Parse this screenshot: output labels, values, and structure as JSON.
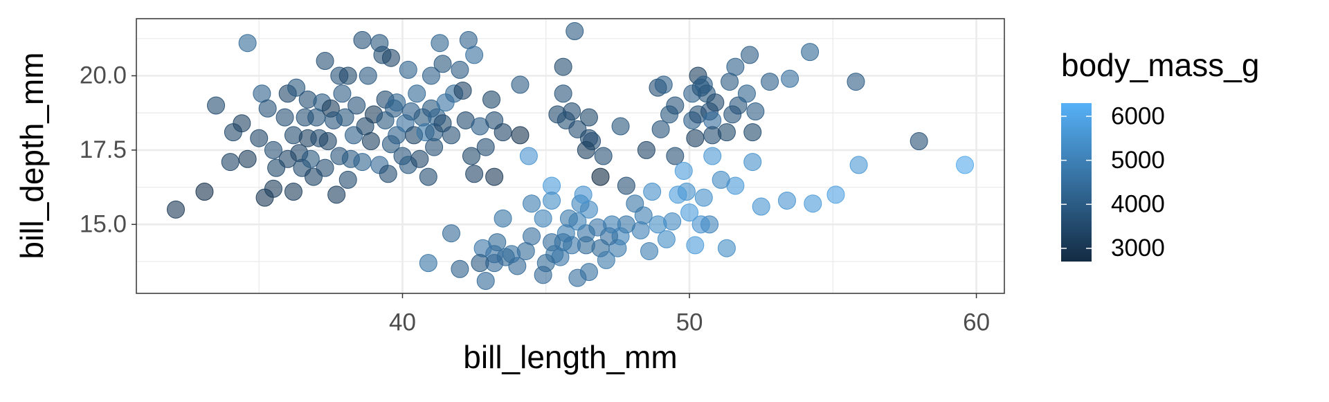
{
  "chart_data": {
    "type": "scatter",
    "x_label": "bill_length_mm",
    "y_label": "bill_depth_mm",
    "xlim": [
      30.725,
      60.975
    ],
    "ylim": [
      12.68,
      21.92
    ],
    "xticks": [
      40,
      50,
      60
    ],
    "yticks": [
      {
        "value": 15,
        "label": "15.0"
      },
      17.5,
      {
        "value": 20,
        "label": "20.0"
      }
    ],
    "xminor": [
      35,
      45,
      55
    ],
    "yminor": [
      13.75,
      16.25,
      18.75,
      21.25
    ],
    "grid": true,
    "point_alpha": 0.6,
    "colorbar": {
      "title": "body_mass_g",
      "lim": [
        2700,
        6300
      ],
      "ticks": [
        3000,
        4000,
        5000,
        6000
      ],
      "low": "#132B43",
      "high": "#56B1F7"
    },
    "x": [
      32.1,
      33.1,
      33.5,
      34.0,
      34.6,
      34.1,
      34.4,
      34.6,
      35.1,
      35.0,
      35.2,
      35.3,
      35.5,
      35.6,
      35.5,
      35.9,
      36.0,
      36.0,
      36.2,
      36.2,
      36.4,
      36.3,
      36.5,
      36.6,
      36.7,
      36.7,
      36.8,
      36.9,
      37.0,
      37.1,
      37.2,
      37.3,
      37.3,
      37.4,
      37.5,
      37.6,
      37.7,
      37.8,
      37.8,
      37.9,
      38.0,
      38.1,
      38.1,
      38.2,
      38.3,
      38.4,
      38.6,
      38.6,
      38.7,
      38.8,
      38.9,
      39.0,
      39.2,
      39.2,
      39.3,
      39.4,
      39.4,
      39.5,
      39.6,
      39.6,
      39.7,
      39.8,
      39.8,
      40.0,
      40.1,
      40.2,
      40.2,
      40.3,
      40.4,
      40.5,
      40.6,
      40.7,
      40.8,
      40.9,
      41.0,
      41.0,
      41.1,
      41.1,
      41.2,
      41.3,
      41.4,
      41.4,
      41.5,
      41.7,
      41.8,
      42.0,
      42.1,
      42.2,
      42.3,
      42.4,
      42.5,
      42.5,
      42.7,
      42.9,
      43.1,
      43.2,
      43.2,
      43.5,
      44.1,
      44.1,
      44.4,
      46.0,
      45.6,
      45.6,
      45.4,
      45.7,
      45.9,
      46.1,
      46.5,
      46.5,
      46.6,
      46.4,
      47.0,
      46.9,
      47.6,
      47.8,
      48.5,
      49.5,
      48.9,
      49.1,
      49.3,
      49.5,
      49.0,
      50.1,
      50.1,
      50.2,
      50.3,
      50.3,
      50.4,
      50.5,
      50.6,
      50.7,
      50.8,
      50.9,
      50.8,
      51.3,
      51.4,
      51.5,
      51.6,
      51.7,
      52.0,
      52.1,
      52.2,
      52.3,
      52.8,
      53.5,
      54.2,
      55.8,
      58.0,
      59.6,
      55.9,
      55.1,
      54.3,
      53.4,
      52.5,
      52.2,
      51.3,
      51.6,
      51.1,
      50.8,
      50.2,
      50.7,
      50.4,
      50.5,
      50.0,
      49.8,
      49.9,
      49.6,
      49.4,
      49.2,
      48.9,
      48.7,
      48.4,
      48.6,
      48.1,
      48.3,
      47.8,
      47.5,
      47.6,
      47.2,
      47.3,
      46.9,
      46.8,
      47.1,
      46.5,
      46.4,
      46.4,
      46.2,
      46.1,
      46.3,
      45.7,
      45.9,
      45.8,
      45.6,
      45.5,
      45.3,
      45.2,
      45.0,
      44.9,
      45.2,
      45.2,
      46.1,
      46.5,
      44.9,
      44.5,
      44.5,
      44.3,
      44.0,
      43.8,
      43.6,
      43.5,
      43.3,
      43.2,
      43.2,
      42.9,
      42.8,
      42.7,
      42.0,
      41.7,
      40.9
    ],
    "values": [
      15.5,
      16.1,
      19.0,
      17.1,
      21.1,
      18.1,
      18.4,
      17.2,
      19.4,
      17.9,
      15.9,
      18.9,
      17.5,
      16.9,
      16.2,
      18.6,
      19.4,
      17.2,
      18.0,
      16.1,
      17.4,
      19.6,
      16.9,
      18.6,
      17.9,
      19.2,
      17.2,
      16.6,
      18.6,
      17.9,
      19.1,
      20.5,
      16.9,
      17.8,
      18.9,
      18.5,
      16.0,
      20.0,
      17.3,
      19.4,
      18.6,
      16.5,
      20.0,
      17.2,
      18.0,
      19.0,
      21.2,
      17.1,
      18.3,
      20.0,
      17.8,
      18.7,
      21.1,
      17.0,
      20.7,
      18.5,
      19.2,
      16.7,
      20.6,
      17.7,
      18.9,
      18.0,
      19.1,
      17.3,
      18.4,
      20.2,
      17.0,
      18.8,
      18.0,
      19.4,
      17.2,
      18.6,
      18.1,
      16.6,
      20.0,
      18.9,
      17.6,
      18.1,
      18.6,
      21.1,
      20.4,
      18.4,
      19.1,
      18.0,
      19.4,
      20.2,
      19.5,
      18.5,
      21.2,
      17.3,
      16.7,
      20.7,
      18.3,
      17.6,
      19.2,
      16.6,
      18.5,
      18.1,
      19.7,
      18.0,
      17.3,
      21.5,
      20.3,
      19.4,
      18.7,
      18.5,
      18.8,
      18.2,
      18.6,
      17.9,
      17.8,
      17.5,
      17.3,
      16.6,
      18.3,
      16.3,
      17.5,
      17.3,
      19.6,
      19.7,
      18.7,
      19.0,
      18.2,
      19.4,
      18.5,
      17.9,
      18.7,
      20.0,
      19.6,
      19.7,
      19.4,
      18.8,
      18.5,
      19.1,
      18.0,
      18.1,
      19.8,
      18.7,
      20.3,
      19.0,
      19.4,
      20.7,
      18.1,
      18.8,
      19.8,
      19.9,
      20.8,
      19.8,
      17.8,
      17.0,
      17.0,
      16.0,
      15.7,
      15.8,
      15.6,
      17.1,
      14.2,
      16.3,
      16.5,
      17.3,
      14.3,
      15.0,
      15.0,
      15.9,
      15.4,
      16.8,
      16.1,
      16.0,
      15.1,
      14.5,
      15.0,
      16.1,
      15.3,
      14.1,
      15.7,
      14.8,
      15.0,
      14.2,
      14.6,
      14.6,
      15.0,
      14.2,
      14.9,
      13.8,
      15.5,
      14.7,
      14.3,
      15.7,
      15.1,
      16.0,
      14.7,
      14.3,
      15.2,
      14.4,
      13.9,
      14.0,
      14.4,
      13.7,
      15.2,
      16.3,
      15.8,
      13.2,
      13.4,
      13.3,
      14.6,
      15.7,
      14.1,
      13.6,
      14.0,
      13.9,
      15.2,
      14.4,
      14.0,
      13.7,
      13.1,
      14.2,
      13.7,
      13.5,
      14.7,
      13.7
    ],
    "color_values": [
      3050,
      2900,
      3600,
      3400,
      4400,
      3475,
      3325,
      3200,
      4150,
      3450,
      3050,
      3800,
      3700,
      3500,
      3200,
      3700,
      3450,
      3450,
      3550,
      3200,
      3400,
      3900,
      3600,
      3700,
      3300,
      3650,
      3900,
      3400,
      3800,
      3600,
      4000,
      3700,
      3600,
      3400,
      3200,
      3800,
      3250,
      3750,
      3800,
      4000,
      3850,
      3550,
      3500,
      3950,
      4050,
      3750,
      3750,
      4200,
      3450,
      3950,
      3300,
      3200,
      3900,
      4350,
      3650,
      3900,
      3550,
      3600,
      3450,
      3900,
      4000,
      4100,
      4250,
      3800,
      4500,
      4200,
      3950,
      4050,
      3400,
      4300,
      3475,
      3900,
      4650,
      3600,
      4100,
      3900,
      3700,
      3950,
      4200,
      4250,
      3850,
      3500,
      4600,
      3700,
      4400,
      4000,
      3350,
      3550,
      4150,
      3500,
      3350,
      4500,
      4075,
      3650,
      3500,
      3050,
      3700,
      3400,
      4000,
      3000,
      5500,
      3950,
      3600,
      3800,
      3525,
      3725,
      3600,
      3650,
      3500,
      3500,
      3650,
      3300,
      3700,
      2700,
      3850,
      3700,
      3400,
      3700,
      3650,
      4050,
      3850,
      3800,
      3800,
      4100,
      4100,
      3300,
      3650,
      3300,
      3725,
      4050,
      3850,
      3675,
      4450,
      3550,
      3600,
      3500,
      3950,
      3750,
      4100,
      3800,
      4200,
      4000,
      3500,
      4000,
      4100,
      4500,
      4300,
      4000,
      3700,
      6050,
      5600,
      5850,
      5650,
      5500,
      5550,
      5400,
      5300,
      5650,
      5250,
      5600,
      5700,
      5050,
      5450,
      5400,
      5700,
      5700,
      5400,
      5700,
      5200,
      5300,
      5300,
      5350,
      4900,
      4900,
      4650,
      4950,
      4650,
      4800,
      5000,
      4500,
      4900,
      4400,
      4700,
      4800,
      5200,
      4600,
      4400,
      5100,
      5000,
      5500,
      4900,
      4700,
      4800,
      4600,
      4700,
      4650,
      4500,
      4400,
      5050,
      5700,
      5300,
      4500,
      4550,
      4350,
      4500,
      4850,
      4400,
      4350,
      4550,
      4400,
      4650,
      4400,
      4500,
      4350,
      4375,
      4700,
      3950,
      4150,
      4350,
      4650
    ]
  }
}
